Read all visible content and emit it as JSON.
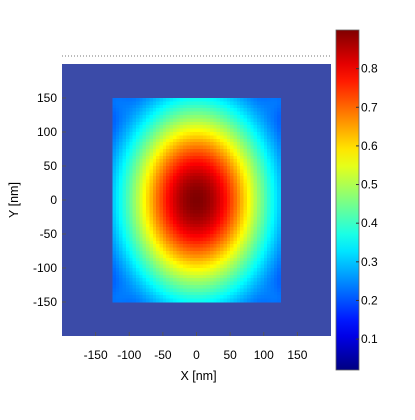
{
  "chart_data": {
    "type": "heatmap",
    "title": "",
    "xlabel": "X [nm]",
    "ylabel": "Y [nm]",
    "xlim": [
      -200,
      200
    ],
    "ylim": [
      -200,
      200
    ],
    "x_ticks": [
      -150,
      -100,
      -50,
      0,
      50,
      100,
      150
    ],
    "x_tick_labels": [
      "-150",
      "-100",
      "-50",
      "0",
      "50",
      "100",
      "150"
    ],
    "y_ticks": [
      150,
      100,
      50,
      0,
      -50,
      -100,
      -150
    ],
    "y_tick_labels": [
      "150",
      "100",
      "50",
      "0",
      "-50",
      "-100",
      "-150"
    ],
    "colorbar": {
      "min": 0.02,
      "max": 0.9,
      "ticks": [
        0.8,
        0.7,
        0.6,
        0.5,
        0.4,
        0.3,
        0.2,
        0.1
      ],
      "tick_labels": [
        "0.8",
        "0.7",
        "0.6",
        "0.5",
        "0.4",
        "0.3",
        "0.2",
        "0.1"
      ],
      "colormap": "jet"
    },
    "background_value": 0.05,
    "field_region": {
      "x": [
        -125,
        125
      ],
      "y": [
        -150,
        150
      ]
    },
    "peak": {
      "x": 0,
      "y": 0,
      "value": 0.9
    },
    "grid": false,
    "background_color": "#3b4ba8"
  }
}
